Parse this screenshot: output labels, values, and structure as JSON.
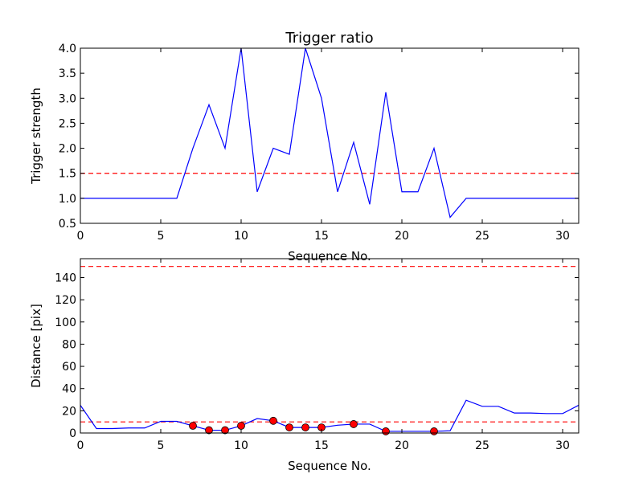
{
  "chart_data": [
    {
      "type": "line",
      "title": "Trigger ratio",
      "xlabel": "Sequence No.",
      "ylabel": "Trigger strength",
      "xlim": [
        0,
        31
      ],
      "ylim": [
        0.5,
        4.0
      ],
      "xticks": [
        0,
        5,
        10,
        15,
        20,
        25,
        30
      ],
      "xtick_labels": [
        "0",
        "5",
        "10",
        "15",
        "20",
        "25",
        "30"
      ],
      "yticks": [
        0.5,
        1.0,
        1.5,
        2.0,
        2.5,
        3.0,
        3.5,
        4.0
      ],
      "ytick_labels": [
        "0.5",
        "1.0",
        "1.5",
        "2.0",
        "2.5",
        "3.0",
        "3.5",
        "4.0"
      ],
      "grid": false,
      "series": [
        {
          "color": "#0000ff",
          "x": [
            0,
            1,
            2,
            3,
            4,
            5,
            6,
            7,
            8,
            9,
            10,
            11,
            12,
            13,
            14,
            15,
            16,
            17,
            18,
            19,
            20,
            21,
            22,
            23,
            24,
            25,
            26,
            27,
            28,
            29,
            30,
            31
          ],
          "values": [
            1.0,
            1.0,
            1.0,
            1.0,
            1.0,
            1.0,
            1.0,
            2.0,
            2.87,
            2.0,
            4.0,
            1.13,
            2.0,
            1.88,
            4.0,
            3.0,
            1.13,
            2.12,
            0.88,
            3.12,
            1.13,
            1.13,
            2.0,
            0.62,
            1.0,
            1.0,
            1.0,
            1.0,
            1.0,
            1.0,
            1.0,
            1.0
          ]
        }
      ],
      "hlines": [
        {
          "y": 1.5,
          "color": "#ff0000",
          "style": "dashed"
        }
      ]
    },
    {
      "type": "line",
      "title": "",
      "xlabel": "Sequence No.",
      "ylabel": "Distance [pix]",
      "xlim": [
        0,
        31
      ],
      "ylim": [
        0,
        157
      ],
      "xticks": [
        0,
        5,
        10,
        15,
        20,
        25,
        30
      ],
      "xtick_labels": [
        "0",
        "5",
        "10",
        "15",
        "20",
        "25",
        "30"
      ],
      "yticks": [
        0,
        20,
        40,
        60,
        80,
        100,
        120,
        140
      ],
      "ytick_labels": [
        "0",
        "20",
        "40",
        "60",
        "80",
        "100",
        "120",
        "140"
      ],
      "grid": false,
      "series": [
        {
          "color": "#0000ff",
          "x": [
            0,
            1,
            2,
            3,
            4,
            5,
            6,
            7,
            8,
            9,
            10,
            11,
            12,
            13,
            14,
            15,
            16,
            17,
            18,
            19,
            20,
            21,
            22,
            23,
            24,
            25,
            26,
            27,
            28,
            29,
            30,
            31
          ],
          "values": [
            25,
            4,
            4,
            4.5,
            4.5,
            10.5,
            10.5,
            6.5,
            2.5,
            2.5,
            6.5,
            13,
            11,
            5,
            5,
            5,
            7,
            8,
            8,
            1.5,
            1.5,
            1.5,
            1.5,
            2,
            29.5,
            24,
            24,
            18,
            18,
            17.5,
            17.5,
            25
          ]
        }
      ],
      "markers": {
        "color": "#ff0000",
        "x": [
          7,
          8,
          9,
          10,
          12,
          13,
          14,
          15,
          17,
          19,
          22
        ],
        "values": [
          6.5,
          2.5,
          2.5,
          6.5,
          11,
          5,
          5,
          5,
          8,
          1.5,
          1.5
        ]
      },
      "hlines": [
        {
          "y": 150,
          "color": "#ff0000",
          "style": "dashed"
        },
        {
          "y": 10,
          "color": "#ff0000",
          "style": "dashed"
        }
      ]
    }
  ]
}
